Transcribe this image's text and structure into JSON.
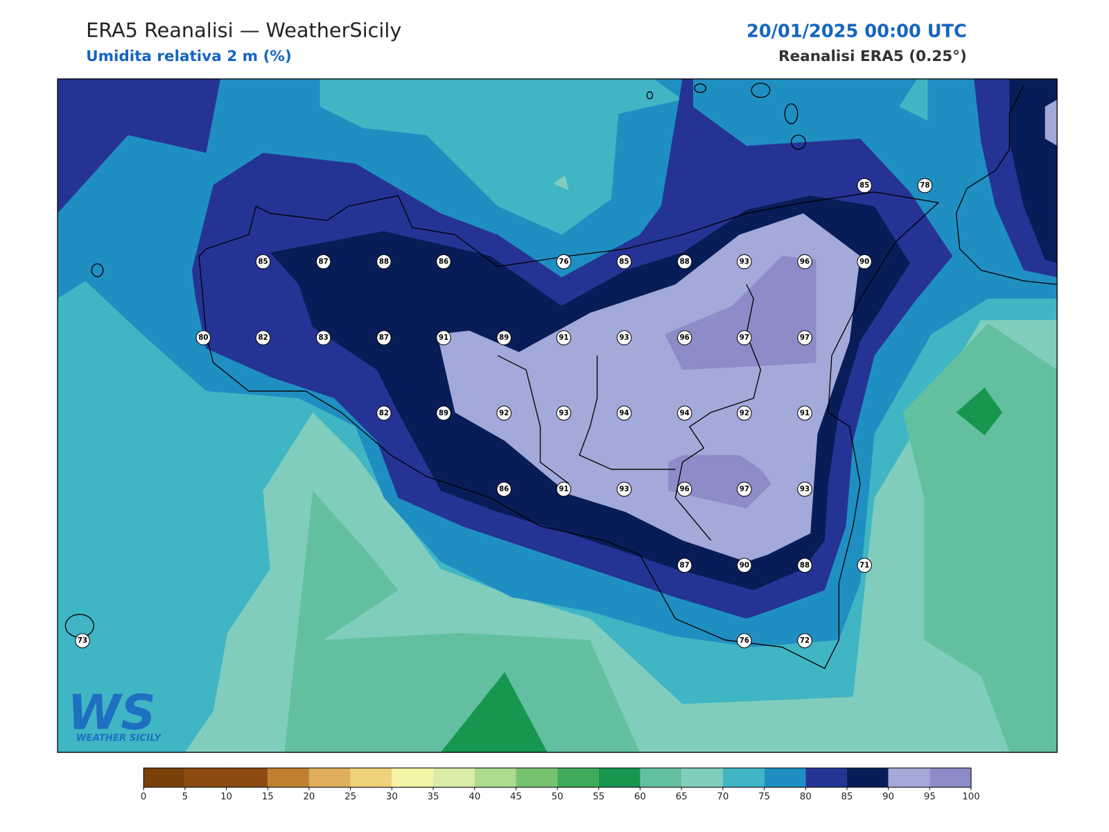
{
  "header": {
    "title": "ERA5 Reanalisi — WeatherSicily",
    "subtitle": "Umidita relativa 2 m (%)",
    "datetime": "20/01/2025 00:00 UTC",
    "source": "Reanalisi ERA5 (0.25°)"
  },
  "stations": [
    85,
    87,
    88,
    86,
    76,
    85,
    88,
    93,
    96,
    90,
    85,
    78,
    80,
    82,
    83,
    87,
    91,
    89,
    91,
    93,
    96,
    97,
    97,
    82,
    89,
    92,
    93,
    94,
    94,
    92,
    91,
    86,
    91,
    93,
    96,
    97,
    93,
    87,
    90,
    88,
    71,
    73,
    76,
    72
  ],
  "colorbar": {
    "lim": [
      0,
      100
    ],
    "ticks": [
      0,
      5,
      10,
      15,
      20,
      25,
      30,
      35,
      40,
      45,
      50,
      55,
      60,
      65,
      70,
      75,
      80,
      85,
      90,
      95,
      100
    ],
    "colors": [
      "#7a400a",
      "#8c4b10",
      "#8c4b10",
      "#c0802f",
      "#dfae5c",
      "#f0d27c",
      "#f5f3a6",
      "#d9eda6",
      "#aedc8f",
      "#77c271",
      "#3faa5a",
      "#179650",
      "#62c0a0",
      "#80cdbd",
      "#40b5c4",
      "#1f8fc2",
      "#253494",
      "#081d58",
      "#a3a9d9",
      "#8c8cc8"
    ]
  },
  "logo": {
    "mark": "WS",
    "name": "WEATHER SICILY"
  }
}
